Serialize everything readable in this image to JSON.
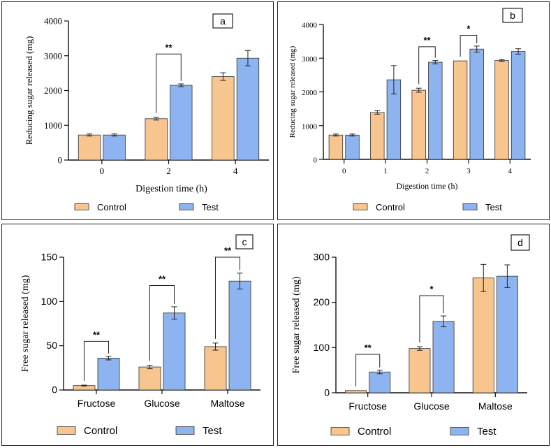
{
  "colors": {
    "control": "#f8c58e",
    "test": "#8db4f0",
    "axis": "#111111"
  },
  "legend": {
    "control_label": "Control",
    "test_label": "Test"
  },
  "chart_data": [
    {
      "panel": "a",
      "type": "bar",
      "ylabel": "Reducing sugar released (mg)",
      "xlabel": "Digestion time (h)",
      "categories": [
        "0",
        "2",
        "4"
      ],
      "ylim": [
        0,
        4000
      ],
      "yticks": [
        0,
        1000,
        2000,
        3000,
        4000
      ],
      "series": [
        {
          "name": "Control",
          "values": [
            720,
            1190,
            2400
          ],
          "errors": [
            30,
            40,
            110
          ]
        },
        {
          "name": "Test",
          "values": [
            720,
            2150,
            2930
          ],
          "errors": [
            30,
            40,
            220
          ]
        }
      ],
      "annotations": [
        {
          "category": 1,
          "text": "**",
          "height": 3050
        }
      ]
    },
    {
      "panel": "b",
      "type": "bar",
      "ylabel": "Reducing sugar released (mg)",
      "xlabel": "Digestion time (h)",
      "categories": [
        "0",
        "1",
        "2",
        "3",
        "4"
      ],
      "ylim": [
        0,
        4000
      ],
      "yticks": [
        0,
        1000,
        2000,
        3000,
        4000
      ],
      "series": [
        {
          "name": "Control",
          "values": [
            720,
            1390,
            2050,
            2920,
            2930
          ],
          "errors": [
            30,
            50,
            60,
            0,
            30
          ]
        },
        {
          "name": "Test",
          "values": [
            720,
            2360,
            2880,
            3270,
            3200
          ],
          "errors": [
            30,
            420,
            50,
            90,
            80
          ]
        }
      ],
      "annotations": [
        {
          "category": 2,
          "text": "**",
          "height": 3340
        },
        {
          "category": 3,
          "text": "*",
          "height": 3680
        }
      ]
    },
    {
      "panel": "c",
      "type": "bar",
      "ylabel": "Free sugar released (mg)",
      "xlabel": "",
      "categories": [
        "Fructose",
        "Glucose",
        "Maltose"
      ],
      "ylim": [
        0,
        150
      ],
      "yticks": [
        0,
        50,
        100,
        150
      ],
      "series": [
        {
          "name": "Control",
          "values": [
            5,
            26,
            49
          ],
          "errors": [
            0.5,
            2,
            4
          ]
        },
        {
          "name": "Test",
          "values": [
            36,
            87,
            123
          ],
          "errors": [
            2,
            7,
            9
          ]
        }
      ],
      "annotations": [
        {
          "category": 0,
          "text": "**",
          "height": 55
        },
        {
          "category": 1,
          "text": "**",
          "height": 118
        },
        {
          "category": 2,
          "text": "**",
          "height": 150
        }
      ]
    },
    {
      "panel": "d",
      "type": "bar",
      "ylabel": "Free sugar released (mg)",
      "xlabel": "",
      "categories": [
        "Fructose",
        "Glucose",
        "Maltose"
      ],
      "ylim": [
        0,
        300
      ],
      "yticks": [
        0,
        100,
        200,
        300
      ],
      "series": [
        {
          "name": "Control",
          "values": [
            5,
            98,
            254
          ],
          "errors": [
            0,
            4,
            30
          ]
        },
        {
          "name": "Test",
          "values": [
            46,
            158,
            258
          ],
          "errors": [
            4,
            12,
            25
          ]
        }
      ],
      "annotations": [
        {
          "category": 0,
          "text": "**",
          "height": 85
        },
        {
          "category": 1,
          "text": "*",
          "height": 215
        }
      ]
    }
  ]
}
